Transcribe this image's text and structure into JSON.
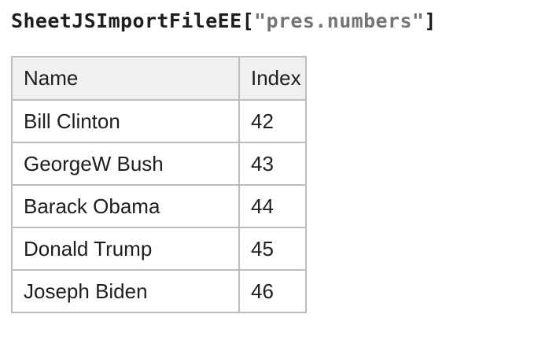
{
  "title": {
    "prefix": "SheetJSImportFileEE[",
    "filename": "\"pres.numbers\"",
    "suffix": "]"
  },
  "table": {
    "columns": [
      "Name",
      "Index"
    ],
    "rows": [
      {
        "name": "Bill Clinton",
        "index": "42"
      },
      {
        "name": "GeorgeW Bush",
        "index": "43"
      },
      {
        "name": "Barack Obama",
        "index": "44"
      },
      {
        "name": "Donald Trump",
        "index": "45"
      },
      {
        "name": "Joseph Biden",
        "index": "46"
      }
    ]
  },
  "colors": {
    "title_text": "#1c1e21",
    "filename_gray": "#757575",
    "table_border": "#bdbdbd",
    "header_background": "#f0f0f0",
    "body_text": "#1c1e21",
    "page_background": "#ffffff"
  }
}
